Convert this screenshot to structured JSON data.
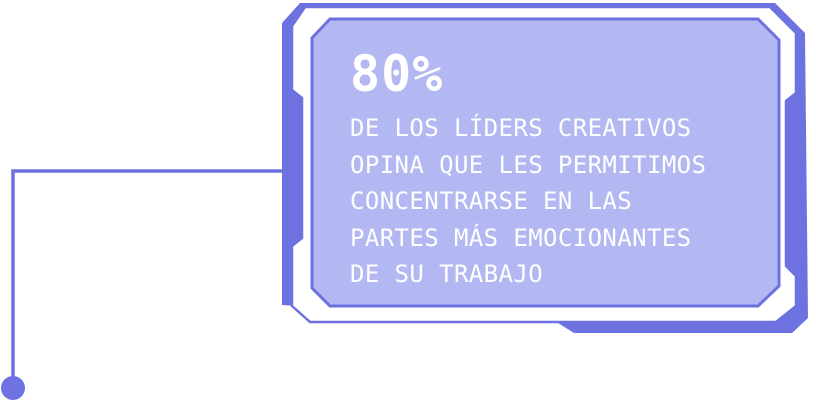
{
  "callout": {
    "stat": "80%",
    "description_lines": [
      "DE LOS LÍDERS CREATIVOS",
      "OPINA QUE LES PERMITIMOS",
      "CONCENTRARSE EN LAS",
      "PARTES MÁS EMOCIONANTES",
      "DE SU TRABAJO"
    ]
  },
  "colors": {
    "accent": "#6e72e0",
    "panel_fill": "#b3b8f2",
    "text": "#ffffff",
    "background": "#ffffff"
  }
}
